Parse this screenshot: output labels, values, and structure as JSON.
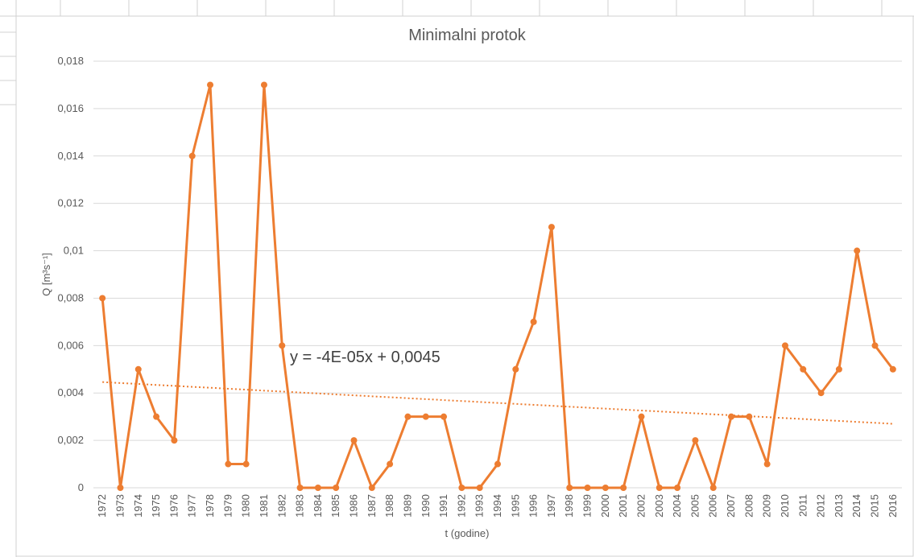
{
  "chart_data": {
    "type": "line",
    "title": "Minimalni protok",
    "x_label": "t (godine)",
    "y_label": "Q [m³s⁻¹]",
    "categories": [
      "1972",
      "1973",
      "1974",
      "1975",
      "1976",
      "1977",
      "1978",
      "1979",
      "1980",
      "1981",
      "1982",
      "1983",
      "1984",
      "1985",
      "1986",
      "1987",
      "1988",
      "1989",
      "1990",
      "1991",
      "1992",
      "1993",
      "1994",
      "1995",
      "1996",
      "1997",
      "1998",
      "1999",
      "2000",
      "2001",
      "2002",
      "2003",
      "2004",
      "2005",
      "2006",
      "2007",
      "2008",
      "2009",
      "2010",
      "2011",
      "2012",
      "2013",
      "2014",
      "2015",
      "2016"
    ],
    "values": [
      0.008,
      0,
      0.005,
      0.003,
      0.002,
      0.014,
      0.017,
      0.001,
      0.001,
      0.017,
      0.006,
      0,
      0,
      0,
      0.002,
      0,
      0.001,
      0.003,
      0.003,
      0.003,
      0,
      0,
      0.001,
      0.005,
      0.007,
      0.011,
      0,
      0,
      0,
      0,
      0.003,
      0,
      0,
      0.002,
      0,
      0.003,
      0.003,
      0.001,
      0.006,
      0.005,
      0.004,
      0.005,
      0.01,
      0.006,
      0.005
    ],
    "color": "#ed7d31",
    "ylim": [
      0,
      0.018
    ],
    "yticks": [
      0,
      {
        "value": 0.002,
        "label": "0,002"
      },
      {
        "value": 0.004,
        "label": "0,004"
      },
      {
        "value": 0.006,
        "label": "0,006"
      },
      {
        "value": 0.008,
        "label": "0,008"
      },
      {
        "value": 0.01,
        "label": "0,01"
      },
      {
        "value": 0.012,
        "label": "0,012"
      },
      {
        "value": 0.014,
        "label": "0,014"
      },
      {
        "value": 0.016,
        "label": "0,016"
      },
      {
        "value": 0.018,
        "label": "0,018"
      }
    ],
    "grid": true,
    "trendline": {
      "slope": -4e-05,
      "intercept": 0.0045,
      "label": "y = -4E-05x + 0,0045"
    }
  }
}
